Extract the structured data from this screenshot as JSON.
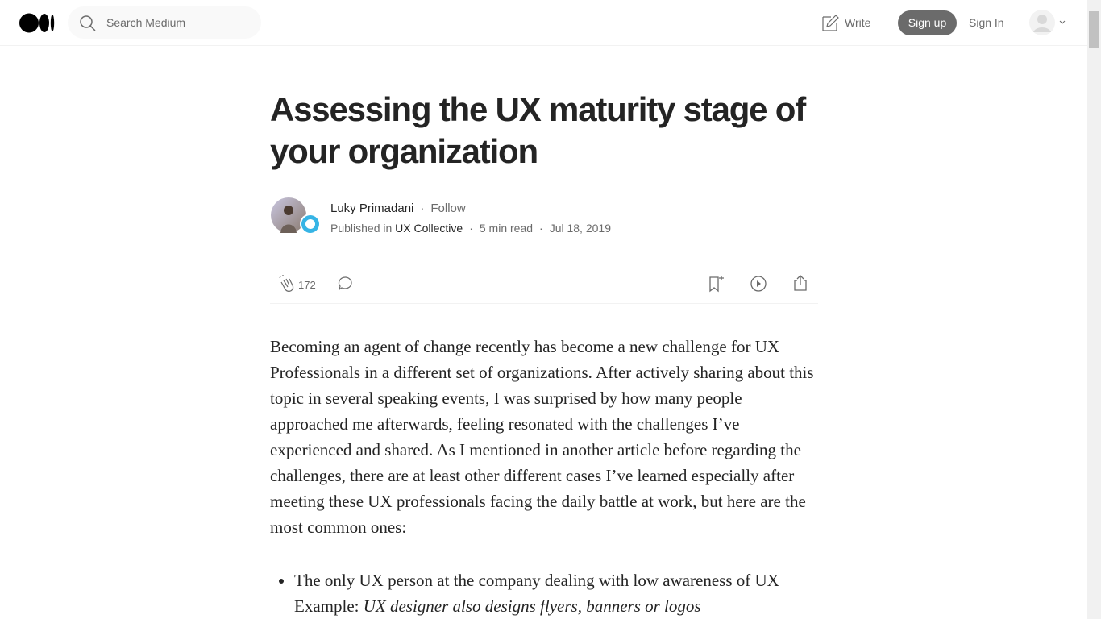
{
  "header": {
    "search_placeholder": "Search Medium",
    "write": "Write",
    "sign_up": "Sign up",
    "sign_in": "Sign In"
  },
  "article": {
    "title": "Assessing the UX maturity stage of your organization",
    "author": "Luky Primadani",
    "follow": "Follow",
    "published_in": "Published in",
    "publication": "UX Collective",
    "read_time": "5 min read",
    "date": "Jul 18, 2019",
    "claps": "172",
    "paragraphs": [
      "Becoming an agent of change recently has become a new challenge for UX Professionals in a different set of organizations. After actively sharing about this topic in several speaking events, I was surprised by how many people approached me afterwards, feeling resonated with the challenges I’ve experienced and shared. As I mentioned in another article before regarding the challenges, there are at least other different cases I’ve learned especially after meeting these UX professionals facing the daily battle at work, but here are the most common ones:"
    ],
    "list": {
      "items": [
        {
          "text": "The only UX person at the company dealing with low awareness of UX",
          "example_label": "Example:",
          "example": "UX designer also designs flyers, banners or logos"
        }
      ]
    }
  }
}
